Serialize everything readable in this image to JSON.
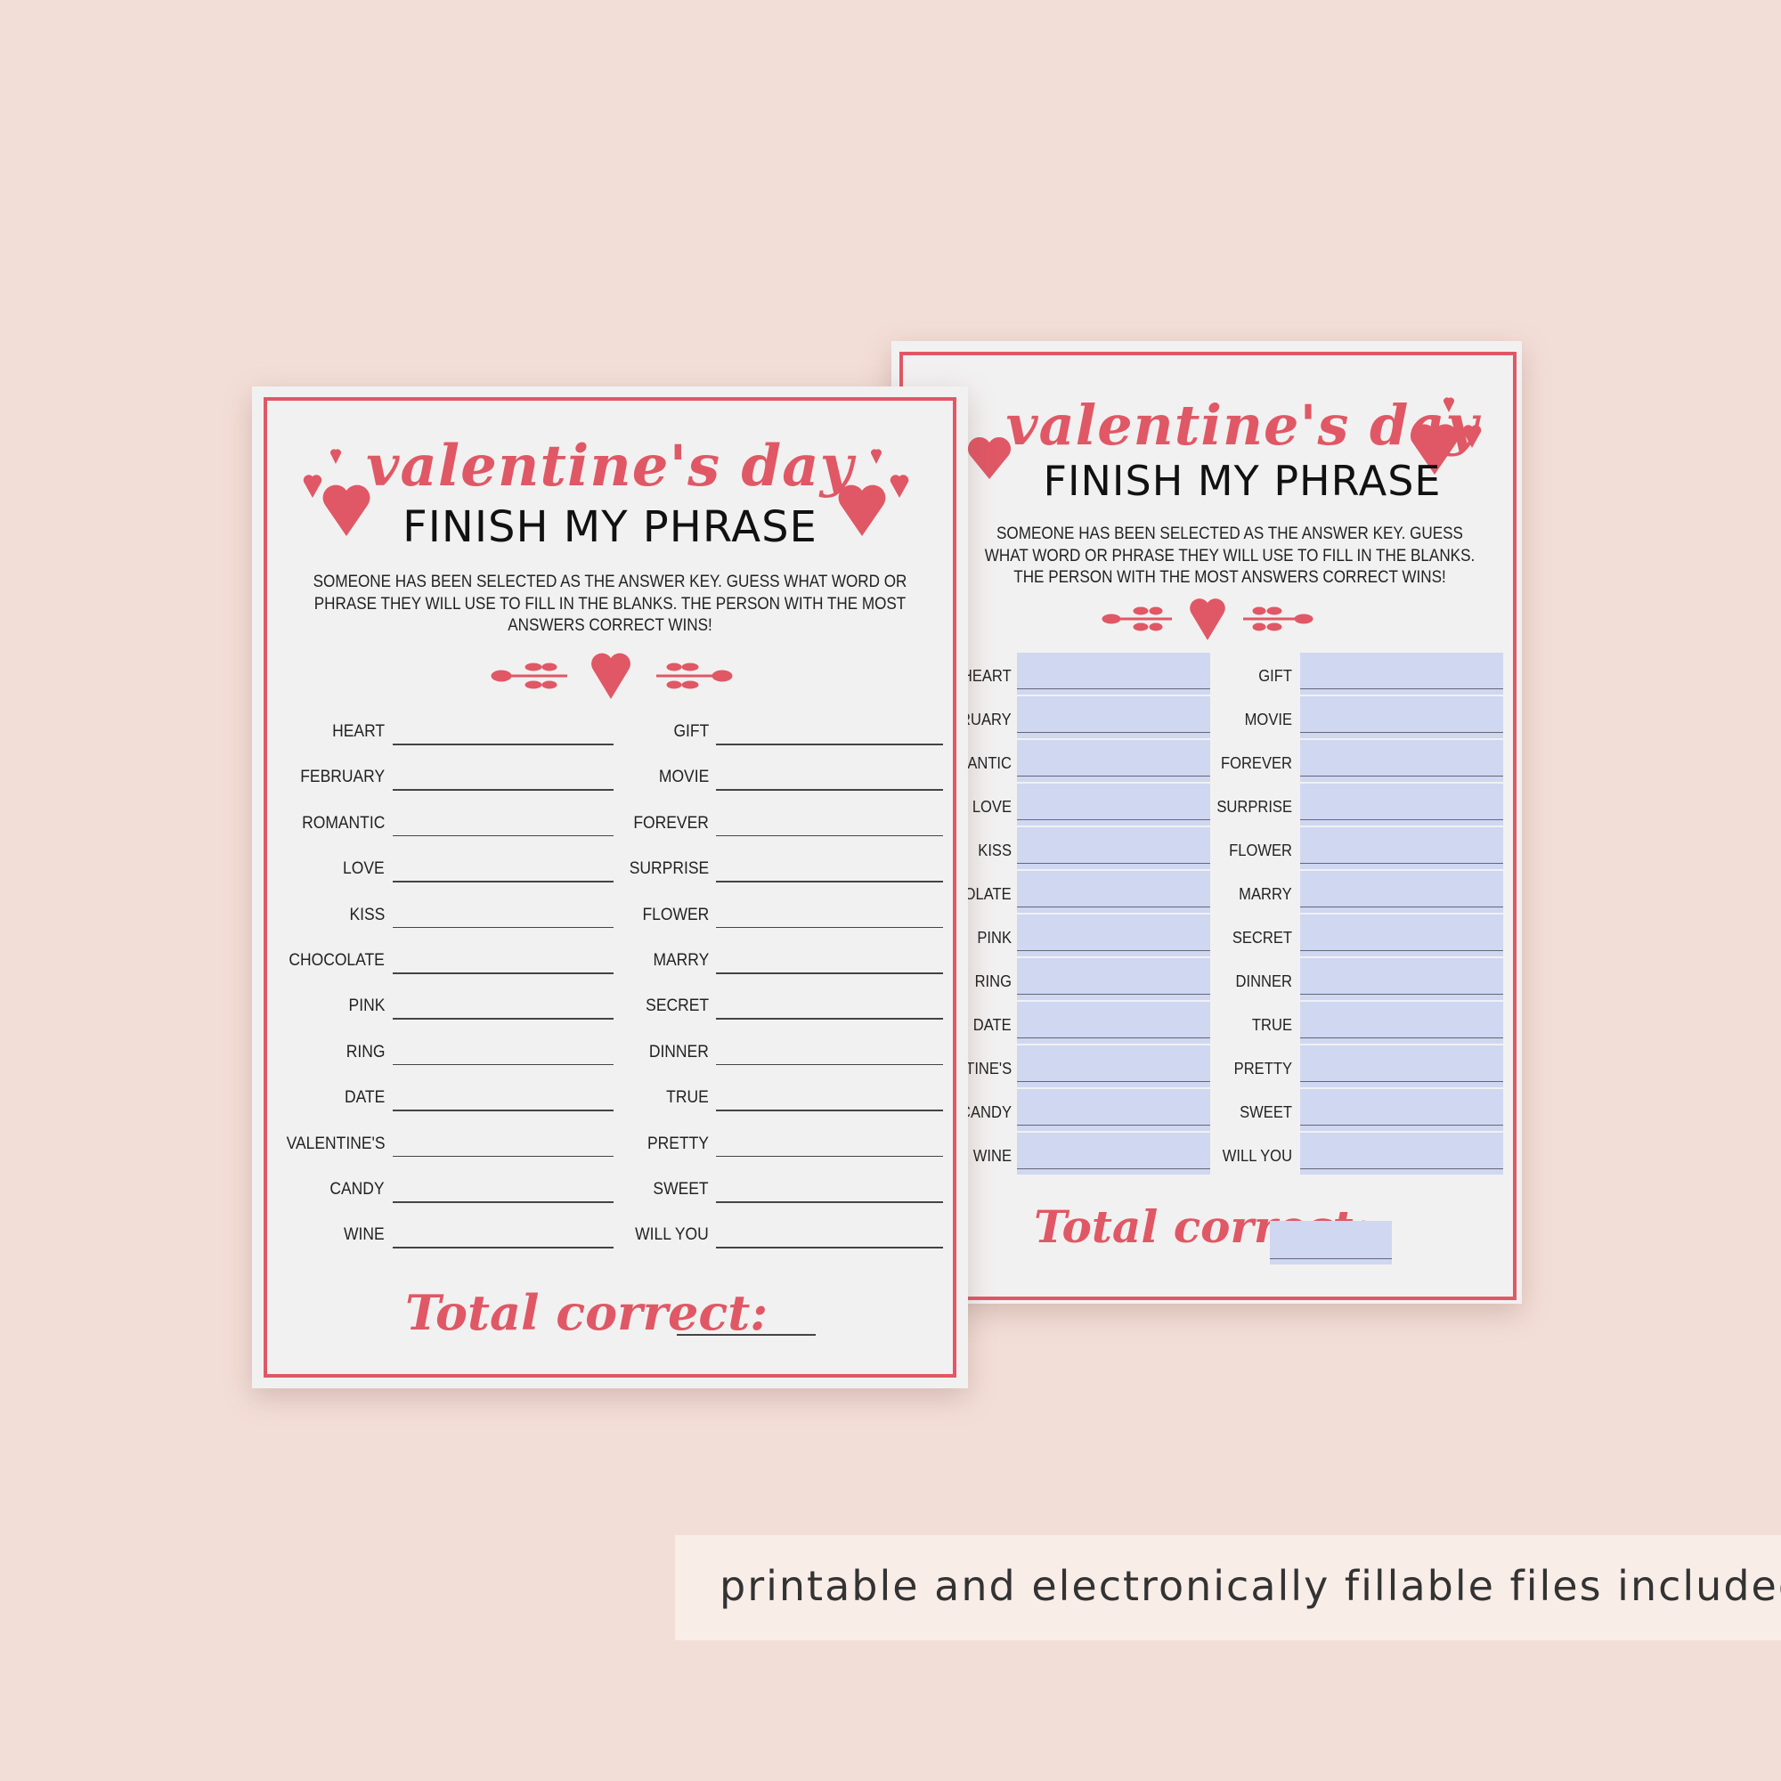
{
  "colors": {
    "accent": "#e05865",
    "background": "#f3ded7",
    "fill_field": "#cfd7f1"
  },
  "sheet": {
    "script_title": "valentine's day",
    "title": "FINISH MY PHRASE",
    "instructions": "SOMEONE HAS BEEN SELECTED AS THE ANSWER KEY. GUESS WHAT WORD OR PHRASE THEY WILL USE TO FILL IN THE BLANKS. THE PERSON WITH THE MOST ANSWERS CORRECT WINS!",
    "left_words": [
      "HEART",
      "FEBRUARY",
      "ROMANTIC",
      "LOVE",
      "KISS",
      "CHOCOLATE",
      "PINK",
      "RING",
      "DATE",
      "VALENTINE'S",
      "CANDY",
      "WINE"
    ],
    "right_words": [
      "GIFT",
      "MOVIE",
      "FOREVER",
      "SURPRISE",
      "FLOWER",
      "MARRY",
      "SECRET",
      "DINNER",
      "TRUE",
      "PRETTY",
      "SWEET",
      "WILL YOU"
    ],
    "total_label": "Total correct:"
  },
  "caption": "printable and electronically fillable files included"
}
